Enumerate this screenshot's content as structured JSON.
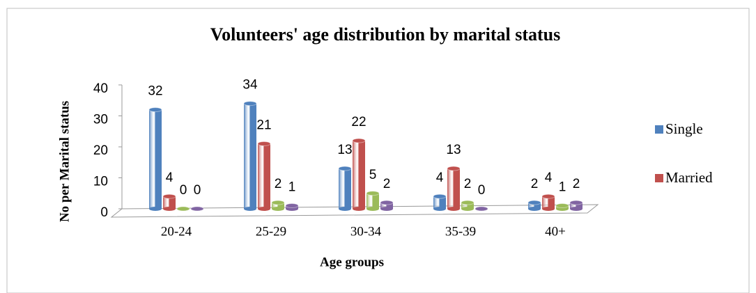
{
  "chart_data": {
    "type": "bar",
    "title": "Volunteers' age distribution by marital status",
    "x_label": "Age groups",
    "y_label": "No per Marital status",
    "categories": [
      "20-24",
      "25-29",
      "30-34",
      "35-39",
      "40+"
    ],
    "series": [
      {
        "name": "Single",
        "color": "#4f81bd",
        "values": [
          32,
          34,
          13,
          4,
          2
        ]
      },
      {
        "name": "Married",
        "color": "#c0504d",
        "values": [
          4,
          21,
          22,
          13,
          4
        ]
      },
      {
        "color": "#9bbb59",
        "values": [
          0,
          2,
          5,
          2,
          1
        ]
      },
      {
        "color": "#8064a2",
        "values": [
          0,
          1,
          2,
          0,
          2
        ]
      }
    ],
    "ylim": [
      0,
      40
    ],
    "yticks": [
      0,
      10,
      20,
      30,
      40
    ],
    "grid": false,
    "legend": "right"
  }
}
